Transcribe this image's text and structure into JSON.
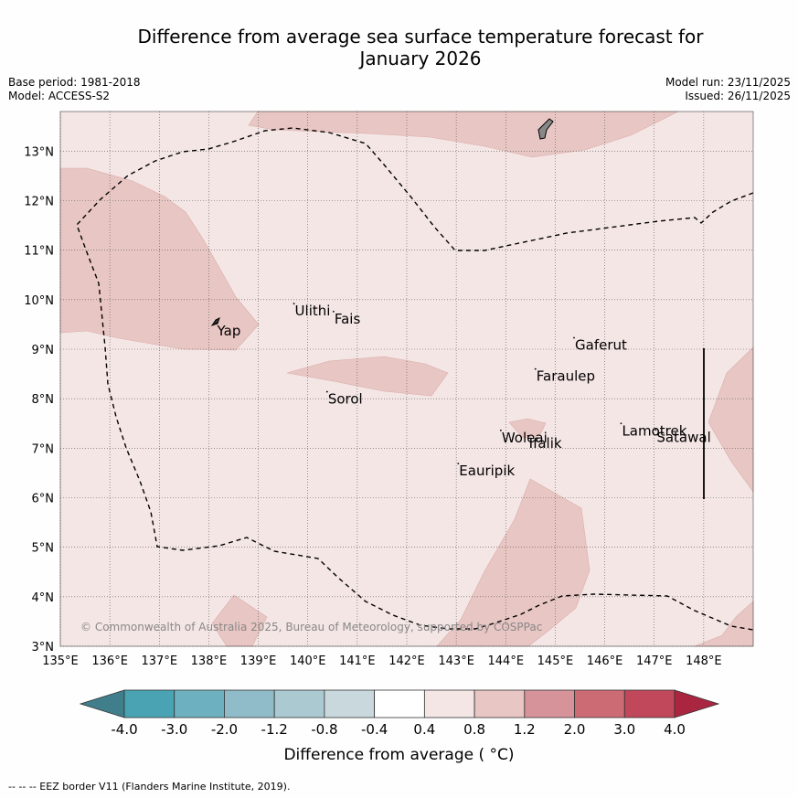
{
  "title_line1": "Difference from average sea surface temperature forecast for",
  "title_line2": "January 2026",
  "base_period": "Base period: 1981-2018",
  "model": "Model: ACCESS-S2",
  "model_run": "Model run: 23/11/2025",
  "issued": "Issued: 26/11/2025",
  "copyright": "© Commonwealth of Australia 2025, Bureau of Meteorology, supported by COSPPac",
  "colorbar": {
    "label": "Difference from average ( °C)",
    "ticks": [
      "-4.0",
      "-3.0",
      "-2.0",
      "-1.2",
      "-0.8",
      "-0.4",
      "0.4",
      "0.8",
      "1.2",
      "2.0",
      "3.0",
      "4.0"
    ],
    "colors": [
      "#3f7e8a",
      "#4aa3b3",
      "#6db0bf",
      "#8fbcc8",
      "#aac9d0",
      "#c9d8dc",
      "#ffffff",
      "#f4e6e5",
      "#e8c6c3",
      "#d69399",
      "#cd6b75",
      "#c0485a",
      "#aa2540"
    ]
  },
  "footnote": "--  --  -- EEZ border V11 (Flanders Marine Institute, 2019).",
  "map": {
    "lon_labels": [
      "135°E",
      "136°E",
      "137°E",
      "138°E",
      "139°E",
      "140°E",
      "141°E",
      "142°E",
      "143°E",
      "144°E",
      "145°E",
      "146°E",
      "147°E",
      "148°E"
    ],
    "lat_labels": [
      "3°N",
      "4°N",
      "5°N",
      "6°N",
      "7°N",
      "8°N",
      "9°N",
      "10°N",
      "11°N",
      "12°N",
      "13°N"
    ],
    "background_color": "#f4e6e5",
    "anomaly_color": "#e8c6c3",
    "places": [
      {
        "name": "Ulithi",
        "lon": 139.72,
        "lat": 9.92
      },
      {
        "name": "Fais",
        "lon": 140.52,
        "lat": 9.76
      },
      {
        "name": "Yap",
        "lon": 138.15,
        "lat": 9.52
      },
      {
        "name": "Gaferut",
        "lon": 145.38,
        "lat": 9.23
      },
      {
        "name": "Faraulep",
        "lon": 144.6,
        "lat": 8.6
      },
      {
        "name": "Sorol",
        "lon": 140.39,
        "lat": 8.14
      },
      {
        "name": "Lamotrek",
        "lon": 146.33,
        "lat": 7.5
      },
      {
        "name": "Woleai",
        "lon": 143.9,
        "lat": 7.36
      },
      {
        "name": "Ifalik",
        "lon": 144.45,
        "lat": 7.25
      },
      {
        "name": "Satawal",
        "lon": 147.03,
        "lat": 7.37
      },
      {
        "name": "Eauripik",
        "lon": 143.04,
        "lat": 6.69
      }
    ]
  }
}
